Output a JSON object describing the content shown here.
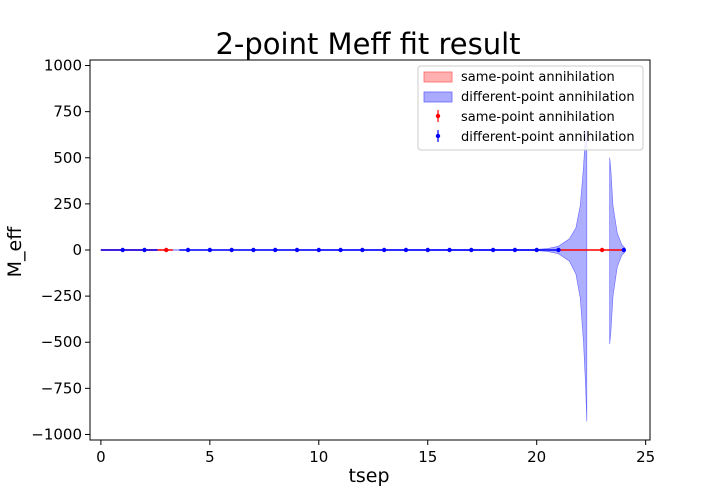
{
  "chart_data": {
    "type": "line",
    "title": "2-point Meff fit result",
    "xlabel": "tsep",
    "ylabel": "M_eff",
    "xlim": [
      -0.5,
      25.2
    ],
    "ylim": [
      -1030,
      1030
    ],
    "x_ticks": [
      0,
      5,
      10,
      15,
      20,
      25
    ],
    "y_ticks": [
      1000,
      750,
      500,
      250,
      0,
      -250,
      -500,
      -750,
      -1000
    ],
    "x_tick_labels": [
      "0",
      "5",
      "10",
      "15",
      "20",
      "25"
    ],
    "y_tick_labels": [
      "1000",
      "750",
      "500",
      "250",
      "0",
      "−250",
      "−500",
      "−750",
      "−1000"
    ],
    "grid": false,
    "legend_position": "top-right",
    "legend": [
      "same-point annihilation",
      "different-point annihilation",
      "same-point annihilation",
      "different-point annihilation"
    ],
    "colors": {
      "same": "#ff0000",
      "same_fill": "#ffb0b0",
      "different": "#0000ff",
      "different_fill": "#aaaaff"
    },
    "series": [
      {
        "name": "same-point annihilation",
        "kind": "band",
        "bands": [
          {
            "x": [
              0,
              3
            ],
            "lower": [
              0,
              0
            ],
            "upper": [
              2,
              2
            ]
          }
        ]
      },
      {
        "name": "different-point annihilation",
        "kind": "band",
        "bands": [
          {
            "x": [
              0,
              20,
              20.5,
              21,
              21.5,
              21.8,
              22.0,
              22.15,
              22.25,
              22.3
            ],
            "lower": [
              -1,
              -3,
              -8,
              -20,
              -60,
              -130,
              -260,
              -500,
              -750,
              -930
            ],
            "upper": [
              1,
              3,
              8,
              20,
              60,
              120,
              240,
              450,
              650,
              650
            ]
          },
          {
            "x": [
              23.35,
              23.4,
              23.5,
              23.7,
              23.9,
              24.05
            ],
            "lower": [
              -510,
              -450,
              -250,
              -90,
              -30,
              -10
            ],
            "upper": [
              500,
              440,
              240,
              90,
              30,
              10
            ]
          }
        ]
      },
      {
        "name": "same-point annihilation",
        "kind": "errorbar",
        "x": [
          3,
          23
        ],
        "y": [
          0,
          0
        ]
      },
      {
        "name": "different-point annihilation",
        "kind": "errorbar",
        "x": [
          1,
          2,
          4,
          5,
          6,
          7,
          8,
          9,
          10,
          11,
          12,
          13,
          14,
          15,
          16,
          17,
          18,
          19,
          20,
          21,
          24
        ],
        "y": [
          0,
          0,
          0,
          0,
          0,
          0,
          0,
          0,
          0,
          0,
          0,
          0,
          0,
          0,
          0,
          0,
          0,
          0,
          0,
          0,
          0
        ]
      }
    ],
    "fit_lines": [
      {
        "name": "same-point annihilation",
        "x": [
          0,
          3.3
        ],
        "y": [
          0,
          0
        ]
      },
      {
        "name": "same-point annihilation",
        "x": [
          21,
          24
        ],
        "y": [
          0,
          0
        ]
      },
      {
        "name": "different-point annihilation",
        "x": [
          0,
          2.6
        ],
        "y": [
          0,
          0
        ]
      },
      {
        "name": "different-point annihilation",
        "x": [
          3.6,
          21
        ],
        "y": [
          0,
          0
        ]
      }
    ]
  }
}
